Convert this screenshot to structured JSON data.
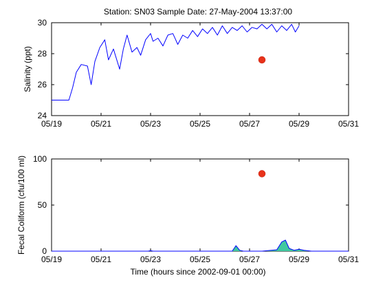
{
  "figure": {
    "title": "Station: SN03  Sample Date: 27-May-2004 13:37:00",
    "xlabel": "Time (hours since 2002-09-01 00:00)"
  },
  "chart_data": [
    {
      "type": "line",
      "ylabel": "Salinity (ppt)",
      "xlim": [
        0,
        12
      ],
      "ylim": [
        24,
        30
      ],
      "x_tick_values": [
        0,
        2,
        4,
        6,
        8,
        10,
        12
      ],
      "x_tick_labels": [
        "05/19",
        "05/21",
        "05/23",
        "05/25",
        "05/27",
        "05/29",
        "05/31"
      ],
      "y_tick_values": [
        24,
        26,
        28,
        30
      ],
      "y_tick_labels": [
        "24",
        "26",
        "28",
        "30"
      ],
      "grid": false,
      "series": [
        {
          "color": "#0000ff",
          "x": [
            0,
            0.4,
            0.7,
            0.85,
            1.0,
            1.2,
            1.45,
            1.6,
            1.75,
            1.95,
            2.15,
            2.3,
            2.5,
            2.75,
            2.9,
            3.05,
            3.25,
            3.45,
            3.6,
            3.8,
            4.0,
            4.1,
            4.3,
            4.5,
            4.7,
            4.9,
            5.1,
            5.3,
            5.5,
            5.7,
            5.9,
            6.1,
            6.3,
            6.5,
            6.7,
            6.9,
            7.1,
            7.3,
            7.5,
            7.7,
            7.9,
            8.1,
            8.3,
            8.5,
            8.7,
            8.9,
            9.1,
            9.3,
            9.5,
            9.7,
            9.85,
            10.0
          ],
          "y": [
            25.0,
            25.0,
            25.0,
            25.8,
            26.8,
            27.3,
            27.2,
            26.0,
            27.5,
            28.4,
            28.9,
            27.6,
            28.3,
            27.0,
            28.3,
            29.2,
            28.1,
            28.4,
            27.9,
            28.9,
            29.3,
            28.8,
            29.0,
            28.5,
            29.2,
            29.3,
            28.6,
            29.2,
            29.0,
            29.5,
            29.1,
            29.6,
            29.3,
            29.7,
            29.2,
            29.8,
            29.3,
            29.7,
            29.5,
            29.8,
            29.4,
            29.7,
            29.6,
            29.9,
            29.6,
            29.9,
            29.4,
            29.8,
            29.5,
            29.9,
            29.4,
            29.8
          ]
        }
      ],
      "markers": [
        {
          "color": "#e8321a",
          "x": 8.5,
          "y": 27.6
        }
      ]
    },
    {
      "type": "area",
      "ylabel": "Fecal Coliform (cfu/100 ml)",
      "xlim": [
        0,
        12
      ],
      "ylim": [
        0,
        100
      ],
      "x_tick_values": [
        0,
        2,
        4,
        6,
        8,
        10,
        12
      ],
      "x_tick_labels": [
        "05/19",
        "05/21",
        "05/23",
        "05/25",
        "05/27",
        "05/29",
        "05/31"
      ],
      "y_tick_values": [
        0,
        50,
        100
      ],
      "y_tick_labels": [
        "0",
        "50",
        "100"
      ],
      "grid": false,
      "series": [
        {
          "color": "#0000ff",
          "fill": "#40c8a0",
          "x": [
            0,
            2.0,
            3.9,
            4.0,
            4.1,
            4.5,
            5.0,
            6.0,
            7.0,
            7.3,
            7.45,
            7.6,
            7.75,
            8.0,
            8.5,
            9.1,
            9.3,
            9.45,
            9.6,
            9.8,
            10.0,
            10.2,
            10.5,
            11.0,
            12.0
          ],
          "y": [
            0,
            0,
            0,
            0.6,
            0,
            0,
            0,
            0,
            0,
            0,
            6,
            1,
            0,
            0,
            0,
            1.5,
            10,
            12,
            3,
            1,
            2,
            1,
            0,
            0,
            0
          ]
        }
      ],
      "markers": [
        {
          "color": "#e8321a",
          "x": 8.5,
          "y": 84
        }
      ]
    }
  ]
}
